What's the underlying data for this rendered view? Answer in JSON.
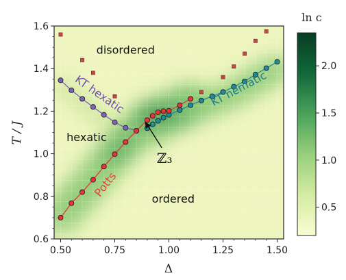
{
  "chart_data": {
    "type": "heatmap",
    "xlabel": "Δ",
    "ylabel": "T / J",
    "xlim": [
      0.47,
      1.53
    ],
    "ylim": [
      0.6,
      1.6
    ],
    "xticks": [
      "0.50",
      "0.75",
      "1.00",
      "1.25",
      "1.50"
    ],
    "yticks": [
      "0.6",
      "0.8",
      "1.0",
      "1.2",
      "1.4",
      "1.6"
    ],
    "colorbar": {
      "label": "ln c",
      "range": [
        0.2,
        2.35
      ],
      "ticks": [
        "0.5",
        "1.0",
        "1.5",
        "2.0"
      ],
      "colormap": [
        "#fbfcd4",
        "#d4eca2",
        "#97cf7c",
        "#4aa25c",
        "#12693a",
        "#063d24"
      ]
    },
    "regions": [
      {
        "label": "disordered",
        "x": 0.8,
        "y": 1.47
      },
      {
        "label": "hexatic",
        "x": 0.62,
        "y": 1.06
      },
      {
        "label": "ordered",
        "x": 1.02,
        "y": 0.77
      }
    ],
    "annotation": {
      "label": "ℤ₃",
      "text_at": {
        "x": 0.98,
        "y": 0.97
      },
      "arrow_to": {
        "x": 0.89,
        "y": 1.15
      }
    },
    "series": [
      {
        "name": "KT hexatic",
        "color": "#7a63b8",
        "label_color": "#6b4fa8",
        "x": [
          0.5,
          0.55,
          0.6,
          0.65,
          0.7,
          0.75,
          0.8,
          0.85
        ],
        "y": [
          1.345,
          1.298,
          1.258,
          1.22,
          1.183,
          1.148,
          1.122,
          1.108
        ]
      },
      {
        "name": "KT nematic",
        "color": "#1f8a99",
        "label_color": "#1f7d88",
        "x": [
          0.9,
          0.925,
          0.95,
          0.975,
          1.0,
          1.05,
          1.1,
          1.15,
          1.2,
          1.25,
          1.3,
          1.35,
          1.4,
          1.45,
          1.5
        ],
        "y": [
          1.12,
          1.138,
          1.155,
          1.17,
          1.183,
          1.205,
          1.228,
          1.25,
          1.27,
          1.29,
          1.315,
          1.34,
          1.372,
          1.402,
          1.432
        ]
      },
      {
        "name": "Potts",
        "color": "#e8333a",
        "label_color": "#e0453c",
        "x": [
          0.5,
          0.55,
          0.6,
          0.65,
          0.7,
          0.75,
          0.8,
          0.85,
          0.9,
          0.925,
          0.95,
          0.975,
          1.0,
          1.05,
          1.1
        ],
        "y": [
          0.7,
          0.768,
          0.82,
          0.878,
          0.94,
          0.998,
          1.055,
          1.108,
          1.158,
          1.178,
          1.195,
          1.2,
          1.202,
          1.228,
          1.258
        ]
      },
      {
        "name": "",
        "color": "#c04a4a",
        "marker": "square",
        "x": [
          0.5,
          0.6,
          0.65,
          0.75,
          1.15,
          1.25,
          1.3,
          1.35,
          1.4,
          1.45
        ],
        "y": [
          1.56,
          1.44,
          1.38,
          1.27,
          1.29,
          1.36,
          1.41,
          1.47,
          1.53,
          1.575
        ]
      }
    ],
    "curve_labels": [
      {
        "text": "KT hexatic",
        "x": 0.67,
        "y": 1.265,
        "angle": 35,
        "series": 0
      },
      {
        "text": "KT nematic",
        "x": 1.33,
        "y": 1.29,
        "angle": -28,
        "series": 1
      },
      {
        "text": "Potts",
        "x": 0.72,
        "y": 0.845,
        "angle": -52,
        "series": 2
      }
    ]
  }
}
